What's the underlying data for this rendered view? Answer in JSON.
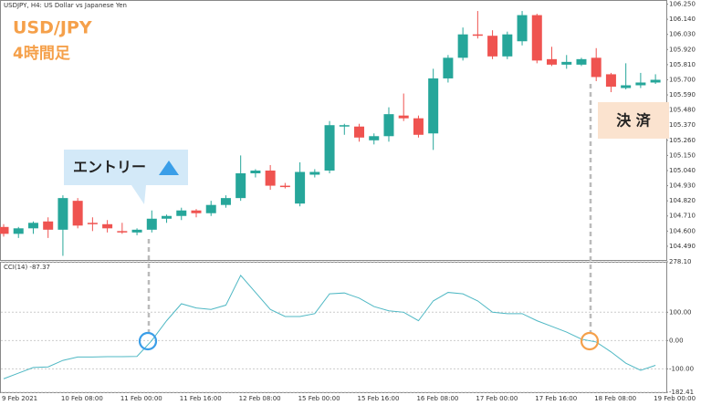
{
  "chart_data": [
    {
      "type": "candlestick",
      "title": "USDJPY, H4: US Dollar vs Japanese Yen",
      "annotations": {
        "symbol": "USD/JPY",
        "timeframe": "4時間足",
        "entry": "エントリー",
        "exit": "決 済"
      },
      "categories": [
        "9 Feb 2021",
        null,
        null,
        null,
        "10 Feb 08:00",
        null,
        null,
        null,
        "11 Feb 00:00",
        null,
        null,
        null,
        "11 Feb 16:00",
        null,
        null,
        null,
        "12 Feb 08:00",
        null,
        null,
        null,
        "15 Feb 00:00",
        null,
        null,
        null,
        "15 Feb 16:00",
        null,
        null,
        null,
        "16 Feb 08:00",
        null,
        null,
        null,
        "17 Feb 00:00",
        null,
        null,
        null,
        "17 Feb 16:00",
        null,
        null,
        null,
        "18 Feb 08:00",
        null,
        null,
        null,
        "19 Feb 00:00"
      ],
      "open": [
        104.63,
        104.58,
        104.62,
        104.67,
        104.61,
        104.82,
        104.66,
        104.65,
        104.6,
        104.59,
        104.61,
        104.69,
        104.71,
        104.75,
        104.73,
        104.79,
        104.84,
        105.02,
        105.04,
        104.93,
        104.8,
        105.01,
        105.04,
        105.36,
        105.36,
        105.26,
        105.29,
        105.44,
        105.42,
        105.31,
        105.71,
        105.86,
        106.03,
        106.02,
        105.87,
        105.98,
        106.17,
        105.85,
        105.81,
        105.81,
        105.86,
        105.74,
        105.64,
        105.66,
        105.68
      ],
      "high": [
        104.65,
        104.63,
        104.67,
        104.7,
        104.86,
        104.84,
        104.7,
        104.68,
        104.66,
        104.62,
        104.75,
        104.72,
        104.77,
        104.76,
        104.82,
        104.86,
        105.15,
        105.05,
        105.08,
        104.95,
        105.1,
        105.05,
        105.4,
        105.38,
        105.38,
        105.31,
        105.5,
        105.6,
        105.44,
        105.78,
        105.88,
        106.08,
        106.2,
        106.06,
        106.05,
        106.2,
        106.18,
        105.94,
        105.88,
        105.86,
        105.93,
        105.75,
        105.82,
        105.75,
        105.74
      ],
      "low": [
        104.56,
        104.55,
        104.58,
        104.55,
        104.42,
        104.62,
        104.6,
        104.59,
        104.58,
        104.57,
        104.59,
        104.66,
        104.68,
        104.7,
        104.71,
        104.77,
        104.82,
        104.99,
        104.9,
        104.91,
        104.78,
        104.99,
        105.02,
        105.3,
        105.25,
        105.23,
        105.25,
        105.4,
        105.28,
        105.19,
        105.68,
        105.84,
        106.0,
        105.85,
        105.85,
        105.95,
        105.82,
        105.8,
        105.78,
        105.8,
        105.69,
        105.61,
        105.63,
        105.64,
        105.67
      ],
      "close": [
        104.58,
        104.62,
        104.66,
        104.61,
        104.84,
        104.64,
        104.65,
        104.62,
        104.59,
        104.61,
        104.69,
        104.71,
        104.75,
        104.73,
        104.79,
        104.84,
        105.02,
        105.04,
        104.93,
        104.92,
        105.03,
        105.03,
        105.37,
        105.37,
        105.28,
        105.29,
        105.45,
        105.42,
        105.3,
        105.71,
        105.86,
        106.03,
        106.02,
        105.87,
        106.03,
        106.17,
        105.84,
        105.81,
        105.83,
        105.85,
        105.72,
        105.65,
        105.66,
        105.68,
        105.7
      ],
      "up_color": "#26a69a",
      "down_color": "#ef5350",
      "ylim": [
        104.39,
        106.28
      ],
      "yticks": [
        {
          "value": 106.25,
          "label": "106.250"
        },
        {
          "value": 106.14,
          "label": "106.140"
        },
        {
          "value": 106.03,
          "label": "106.030"
        },
        {
          "value": 105.92,
          "label": "105.920"
        },
        {
          "value": 105.81,
          "label": "105.810"
        },
        {
          "value": 105.7,
          "label": "105.700"
        },
        {
          "value": 105.59,
          "label": "105.590"
        },
        {
          "value": 105.48,
          "label": "105.480"
        },
        {
          "value": 105.37,
          "label": "105.370"
        },
        {
          "value": 105.26,
          "label": "105.260"
        },
        {
          "value": 105.15,
          "label": "105.150"
        },
        {
          "value": 105.04,
          "label": "105.040"
        },
        {
          "value": 104.93,
          "label": "104.930"
        },
        {
          "value": 104.82,
          "label": "104.820"
        },
        {
          "value": 104.71,
          "label": "104.710"
        },
        {
          "value": 104.6,
          "label": "104.600"
        },
        {
          "value": 104.49,
          "label": "104.490"
        }
      ]
    },
    {
      "type": "line",
      "label": "CCI(14) -87.37",
      "color": "#4fb8c4",
      "values": [
        -135,
        -115,
        -95,
        -93,
        -70,
        -58,
        -58,
        -57,
        -57,
        -56,
        0,
        70,
        130,
        115,
        110,
        125,
        230,
        170,
        110,
        85,
        85,
        95,
        165,
        168,
        150,
        120,
        105,
        100,
        70,
        140,
        170,
        165,
        140,
        100,
        95,
        95,
        70,
        50,
        30,
        5,
        -5,
        -40,
        -80,
        -105,
        -87.37
      ],
      "ylim": [
        -182.41,
        278.1
      ],
      "yticks": [
        {
          "value": 278.1,
          "label": "278.10"
        },
        {
          "value": 100,
          "label": "100.00"
        },
        {
          "value": 0,
          "label": "0.00"
        },
        {
          "value": -100,
          "label": "-100.00"
        },
        {
          "value": -182.41,
          "label": "-182.41"
        }
      ],
      "grid": true
    }
  ]
}
